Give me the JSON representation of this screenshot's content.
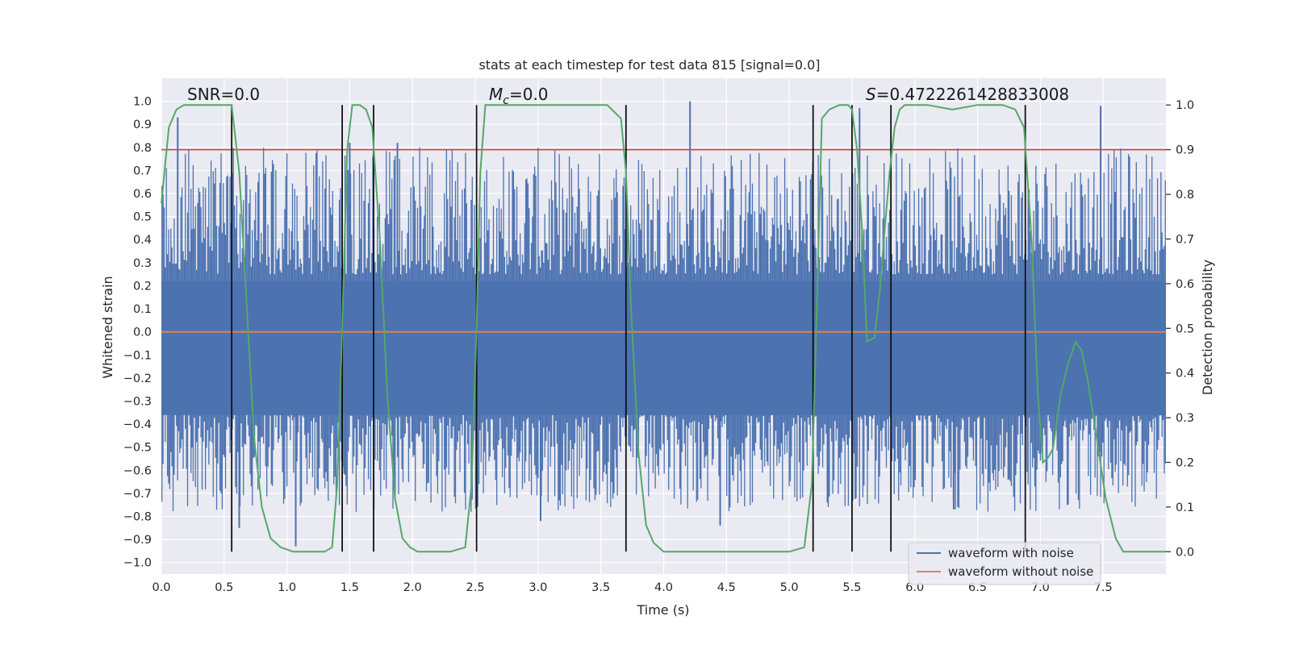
{
  "chart_data": {
    "type": "line",
    "title": "stats at each timestep for test data 815 [signal=0.0]",
    "xlabel": "Time (s)",
    "ylabel": "Whitened strain",
    "y2label": "Detection probability",
    "xlim": [
      0.0,
      8.0
    ],
    "ylim": [
      -1.05,
      1.1
    ],
    "y2lim": [
      -0.05,
      1.06
    ],
    "xticks": [
      0.0,
      0.5,
      1.0,
      1.5,
      2.0,
      2.5,
      3.0,
      3.5,
      4.0,
      4.5,
      5.0,
      5.5,
      6.0,
      6.5,
      7.0,
      7.5
    ],
    "xtick_labels": [
      "0.0",
      "0.5",
      "1.0",
      "1.5",
      "2.0",
      "2.5",
      "3.0",
      "3.5",
      "4.0",
      "4.5",
      "5.0",
      "5.5",
      "6.0",
      "6.5",
      "7.0",
      "7.5"
    ],
    "yticks": [
      1.0,
      0.9,
      0.8,
      0.7,
      0.6,
      0.5,
      0.4,
      0.3,
      0.2,
      0.1,
      0.0,
      -0.1,
      -0.2,
      -0.3,
      -0.4,
      -0.5,
      -0.6,
      -0.7,
      -0.8,
      -0.9,
      -1.0
    ],
    "ytick_labels": [
      "1.0",
      "0.9",
      "0.8",
      "0.7",
      "0.6",
      "0.5",
      "0.4",
      "0.3",
      "0.2",
      "0.1",
      "0.0",
      "−0.1",
      "−0.2",
      "−0.3",
      "−0.4",
      "−0.5",
      "−0.6",
      "−0.7",
      "−0.8",
      "−0.9",
      "−1.0"
    ],
    "y2ticks": [
      1.0,
      0.9,
      0.8,
      0.7,
      0.6,
      0.5,
      0.4,
      0.3,
      0.2,
      0.1,
      0.0
    ],
    "y2tick_labels": [
      "1.0",
      "0.9",
      "0.8",
      "0.7",
      "0.6",
      "0.5",
      "0.4",
      "0.3",
      "0.2",
      "0.1",
      "0.0"
    ],
    "grid": true,
    "legend_position": "bottom-right",
    "annotations": {
      "snr": "SNR=0.0",
      "mc_symbol": "M",
      "mc_sub": "c",
      "mc_value": "=0.0",
      "s_symbol": "S",
      "s_value": "=0.4722261428833008"
    },
    "series": [
      {
        "name": "waveform with noise",
        "color": "#4c72b0",
        "axis": "left",
        "kind": "noise",
        "core_range": [
          -0.36,
          0.22
        ],
        "envelope_range": [
          -1.0,
          1.0
        ],
        "peaks": [
          {
            "x": 0.13,
            "y": 0.93
          },
          {
            "x": 1.5,
            "y": 0.82
          },
          {
            "x": 1.88,
            "y": 0.82
          },
          {
            "x": 4.21,
            "y": 1.0
          },
          {
            "x": 5.56,
            "y": 0.97
          },
          {
            "x": 7.48,
            "y": 0.98
          },
          {
            "x": 1.07,
            "y": -0.93
          },
          {
            "x": 3.02,
            "y": -0.82
          },
          {
            "x": 4.45,
            "y": -0.84
          },
          {
            "x": 6.31,
            "y": -0.77
          },
          {
            "x": 0.62,
            "y": -0.85
          }
        ]
      },
      {
        "name": "waveform without noise",
        "color": "#dd8452",
        "axis": "left",
        "kind": "constant",
        "value": 0.0
      },
      {
        "name": "detection probability",
        "color": "#55a868",
        "axis": "right",
        "x": [
          0.0,
          0.06,
          0.12,
          0.18,
          0.25,
          0.35,
          0.45,
          0.52,
          0.56,
          0.62,
          0.68,
          0.74,
          0.8,
          0.87,
          0.95,
          1.05,
          1.2,
          1.3,
          1.36,
          1.4,
          1.44,
          1.48,
          1.52,
          1.58,
          1.63,
          1.68,
          1.74,
          1.8,
          1.86,
          1.92,
          1.98,
          2.04,
          2.15,
          2.3,
          2.42,
          2.47,
          2.51,
          2.54,
          2.58,
          2.7,
          3.0,
          3.3,
          3.55,
          3.66,
          3.7,
          3.74,
          3.8,
          3.86,
          3.92,
          4.0,
          4.5,
          5.0,
          5.12,
          5.18,
          5.22,
          5.26,
          5.32,
          5.4,
          5.47,
          5.5,
          5.54,
          5.58,
          5.62,
          5.68,
          5.72,
          5.76,
          5.8,
          5.84,
          5.88,
          5.92,
          5.96,
          6.0,
          6.1,
          6.3,
          6.5,
          6.7,
          6.8,
          6.87,
          6.93,
          6.98,
          7.02,
          7.06,
          7.1,
          7.16,
          7.22,
          7.28,
          7.33,
          7.38,
          7.44,
          7.52,
          7.6,
          7.66,
          7.7,
          7.78,
          8.0
        ],
        "values": [
          0.78,
          0.95,
          0.99,
          1.0,
          1.0,
          1.0,
          1.0,
          1.0,
          1.0,
          0.85,
          0.55,
          0.25,
          0.1,
          0.03,
          0.01,
          0.0,
          0.0,
          0.0,
          0.01,
          0.15,
          0.5,
          0.9,
          1.0,
          1.0,
          0.99,
          0.95,
          0.7,
          0.35,
          0.12,
          0.03,
          0.01,
          0.0,
          0.0,
          0.0,
          0.01,
          0.15,
          0.5,
          0.85,
          1.0,
          1.0,
          1.0,
          1.0,
          1.0,
          0.97,
          0.85,
          0.55,
          0.22,
          0.06,
          0.02,
          0.0,
          0.0,
          0.0,
          0.01,
          0.15,
          0.55,
          0.97,
          0.99,
          1.0,
          1.0,
          0.99,
          0.9,
          0.72,
          0.47,
          0.48,
          0.58,
          0.72,
          0.85,
          0.95,
          0.99,
          1.0,
          1.0,
          1.0,
          1.0,
          0.99,
          1.0,
          1.0,
          0.99,
          0.95,
          0.7,
          0.35,
          0.2,
          0.21,
          0.23,
          0.35,
          0.42,
          0.47,
          0.45,
          0.38,
          0.27,
          0.12,
          0.03,
          0.0,
          0.0,
          0.0,
          0.0
        ]
      }
    ],
    "threshold_line": {
      "axis": "right",
      "value": 0.9,
      "color": "#c44e52"
    },
    "vlines": [
      0.56,
      1.44,
      1.69,
      2.51,
      3.7,
      5.19,
      5.5,
      5.81,
      6.88
    ],
    "vline_color": "#111111"
  }
}
